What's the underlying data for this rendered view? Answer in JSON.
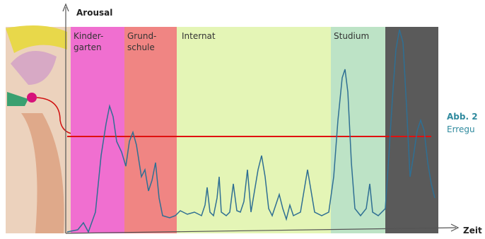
{
  "axes": {
    "y_label": "Arousal",
    "x_label": "Zeit"
  },
  "phases": [
    {
      "label_lines": [
        "Kinder-",
        "garten"
      ]
    },
    {
      "label_lines": [
        "Grund-",
        "schule"
      ]
    },
    {
      "label_lines": [
        "Internat"
      ]
    },
    {
      "label_lines": [
        "Studium"
      ]
    }
  ],
  "caption": {
    "title": "Abb. 2",
    "text": "Erregu"
  }
}
